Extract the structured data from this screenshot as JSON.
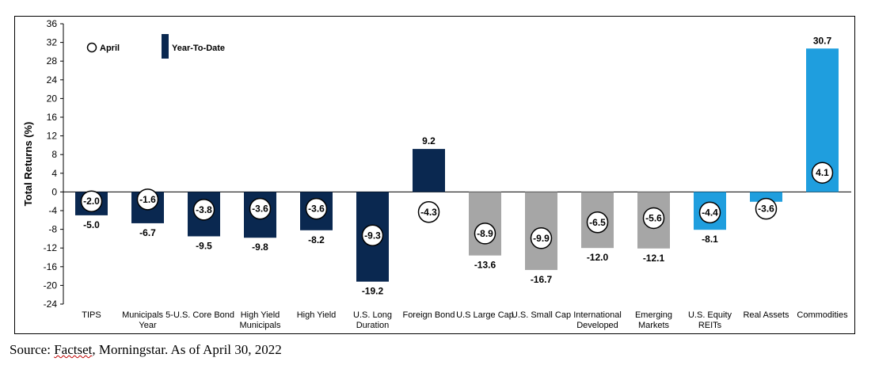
{
  "source": {
    "prefix": "Source: ",
    "name": "Factset",
    "rest": ", Morningstar. As of April 30, 2022"
  },
  "colors": {
    "navy": "#0a2850",
    "gray": "#a6a6a6",
    "blue": "#1f9ede"
  },
  "chart_data": {
    "type": "bar",
    "title": "",
    "ylabel": "Total Returns (%)",
    "ylim": [
      -24,
      36
    ],
    "yticks": [
      -24,
      -20,
      -16,
      -12,
      -8,
      -4,
      0,
      4,
      8,
      12,
      16,
      20,
      24,
      28,
      32,
      36
    ],
    "grid": false,
    "legend": {
      "position": "top-left",
      "april_label": "April",
      "ytd_label": "Year-To-Date"
    },
    "categories": [
      [
        "TIPS"
      ],
      [
        "Municipals 5-",
        "Year"
      ],
      [
        "U.S. Core Bond"
      ],
      [
        "High Yield",
        "Municipals"
      ],
      [
        "High Yield"
      ],
      [
        "U.S. Long",
        "Duration"
      ],
      [
        "Foreign Bond"
      ],
      [
        "U.S Large Cap"
      ],
      [
        "U.S. Small Cap"
      ],
      [
        "International",
        "Developed"
      ],
      [
        "Emerging",
        "Markets"
      ],
      [
        "U.S. Equity",
        "REITs"
      ],
      [
        "Real Assets"
      ],
      [
        "Commodities"
      ]
    ],
    "bar_colors": [
      "navy",
      "navy",
      "navy",
      "navy",
      "navy",
      "navy",
      "navy",
      "gray",
      "gray",
      "gray",
      "gray",
      "blue",
      "blue",
      "blue"
    ],
    "series": [
      {
        "name": "Year-To-Date",
        "values": [
          -5.0,
          -6.7,
          -9.5,
          -9.8,
          -8.2,
          -19.2,
          9.2,
          -13.6,
          -16.7,
          -12.0,
          -12.1,
          -8.1,
          -2.1,
          30.7
        ]
      },
      {
        "name": "April",
        "values": [
          -2.0,
          -1.6,
          -3.8,
          -3.6,
          -3.6,
          -9.3,
          -4.3,
          -8.9,
          -9.9,
          -6.5,
          -5.6,
          -4.4,
          -3.6,
          4.1
        ]
      }
    ]
  }
}
